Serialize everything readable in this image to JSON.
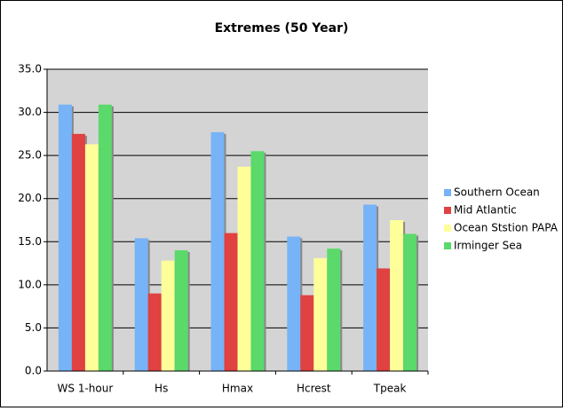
{
  "chart_data": {
    "type": "bar",
    "title": "Extremes (50 Year)",
    "categories": [
      "WS 1-hour",
      "Hs",
      "Hmax",
      "Hcrest",
      "Tpeak"
    ],
    "series": [
      {
        "name": "Southern Ocean",
        "color": "#77b3f7",
        "values": [
          30.9,
          15.4,
          27.7,
          15.6,
          19.3
        ]
      },
      {
        "name": "Mid Atlantic",
        "color": "#e04141",
        "values": [
          27.5,
          9.0,
          16.0,
          8.8,
          11.9
        ]
      },
      {
        "name": "Ocean Ststion PAPA",
        "color": "#ffff9a",
        "values": [
          26.3,
          12.8,
          23.7,
          13.1,
          17.5
        ]
      },
      {
        "name": "Irminger Sea",
        "color": "#5bd96a",
        "values": [
          30.9,
          14.0,
          25.5,
          14.2,
          15.9
        ]
      }
    ],
    "ylim": [
      0,
      35
    ],
    "yticks": [
      {
        "value": 0,
        "label": "0.0"
      },
      {
        "value": 5,
        "label": "5.0"
      },
      {
        "value": 10,
        "label": "10.0"
      },
      {
        "value": 15,
        "label": "15.0"
      },
      {
        "value": 20,
        "label": "20.0"
      },
      {
        "value": 25,
        "label": "25.0"
      },
      {
        "value": 30,
        "label": "30.0"
      },
      {
        "value": 35,
        "label": "35.0"
      }
    ],
    "grid": true,
    "legend": "right"
  }
}
